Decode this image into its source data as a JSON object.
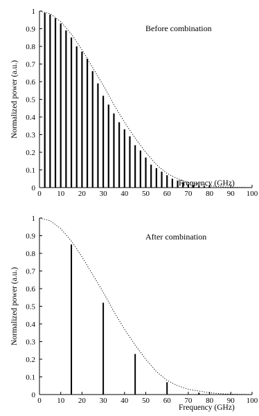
{
  "chart_data": [
    {
      "type": "bar",
      "annotation": "Before combination",
      "xlabel": "Frequency (GHz)",
      "ylabel": "Normalized power (a.u.)",
      "xlim": [
        0,
        100
      ],
      "ylim": [
        0,
        1
      ],
      "xticks": [
        "0",
        "10",
        "20",
        "30",
        "40",
        "50",
        "60",
        "70",
        "80",
        "90",
        "100"
      ],
      "yticks": [
        "0",
        "0.1",
        "0.2",
        "0.3",
        "0.4",
        "0.5",
        "0.6",
        "0.7",
        "0.8",
        "0.9",
        "1"
      ],
      "grid": false,
      "series": [
        {
          "style": "stems",
          "x": [
            2.5,
            5,
            7.5,
            10,
            12.5,
            15,
            17.5,
            20,
            22.5,
            25,
            27.5,
            30,
            32.5,
            35,
            37.5,
            40,
            42.5,
            45,
            47.5,
            50,
            52.5,
            55,
            57.5,
            60,
            62.5,
            65,
            67.5,
            70,
            72.5,
            75,
            77.5,
            80
          ],
          "values": [
            0.99,
            0.98,
            0.96,
            0.93,
            0.89,
            0.85,
            0.8,
            0.77,
            0.73,
            0.66,
            0.59,
            0.52,
            0.47,
            0.42,
            0.37,
            0.33,
            0.29,
            0.24,
            0.21,
            0.17,
            0.13,
            0.11,
            0.09,
            0.07,
            0.05,
            0.04,
            0.03,
            0.02,
            0.015,
            0.01,
            0.008,
            0.005
          ]
        },
        {
          "style": "dotted-envelope",
          "x": [
            0,
            5,
            10,
            15,
            20,
            25,
            30,
            35,
            40,
            45,
            50,
            55,
            60,
            65,
            70,
            75,
            80,
            85,
            90,
            95,
            100
          ],
          "values": [
            1.0,
            0.985,
            0.94,
            0.87,
            0.78,
            0.68,
            0.58,
            0.47,
            0.37,
            0.28,
            0.2,
            0.13,
            0.08,
            0.05,
            0.03,
            0.02,
            0.01,
            0.005,
            0.002,
            0.001,
            0
          ]
        }
      ]
    },
    {
      "type": "bar",
      "annotation": "After combination",
      "xlabel": "Frequency (GHz)",
      "ylabel": "Normalized power (a.u.)",
      "xlim": [
        0,
        100
      ],
      "ylim": [
        0,
        1
      ],
      "xticks": [
        "0",
        "10",
        "20",
        "30",
        "40",
        "50",
        "60",
        "70",
        "80",
        "90",
        "100"
      ],
      "yticks": [
        "0",
        "0.1",
        "0.2",
        "0.3",
        "0.4",
        "0.5",
        "0.6",
        "0.7",
        "0.8",
        "0.9",
        "1"
      ],
      "grid": false,
      "series": [
        {
          "style": "stems",
          "x": [
            15,
            30,
            45,
            60,
            75
          ],
          "values": [
            0.85,
            0.52,
            0.23,
            0.07,
            0.01
          ]
        },
        {
          "style": "dotted-envelope",
          "x": [
            0,
            5,
            10,
            15,
            20,
            25,
            30,
            35,
            40,
            45,
            50,
            55,
            60,
            65,
            70,
            75,
            80,
            85,
            90,
            95,
            100
          ],
          "values": [
            1.0,
            0.985,
            0.94,
            0.87,
            0.78,
            0.68,
            0.58,
            0.47,
            0.37,
            0.28,
            0.2,
            0.13,
            0.08,
            0.05,
            0.03,
            0.02,
            0.01,
            0.005,
            0.002,
            0.001,
            0
          ]
        }
      ]
    }
  ]
}
